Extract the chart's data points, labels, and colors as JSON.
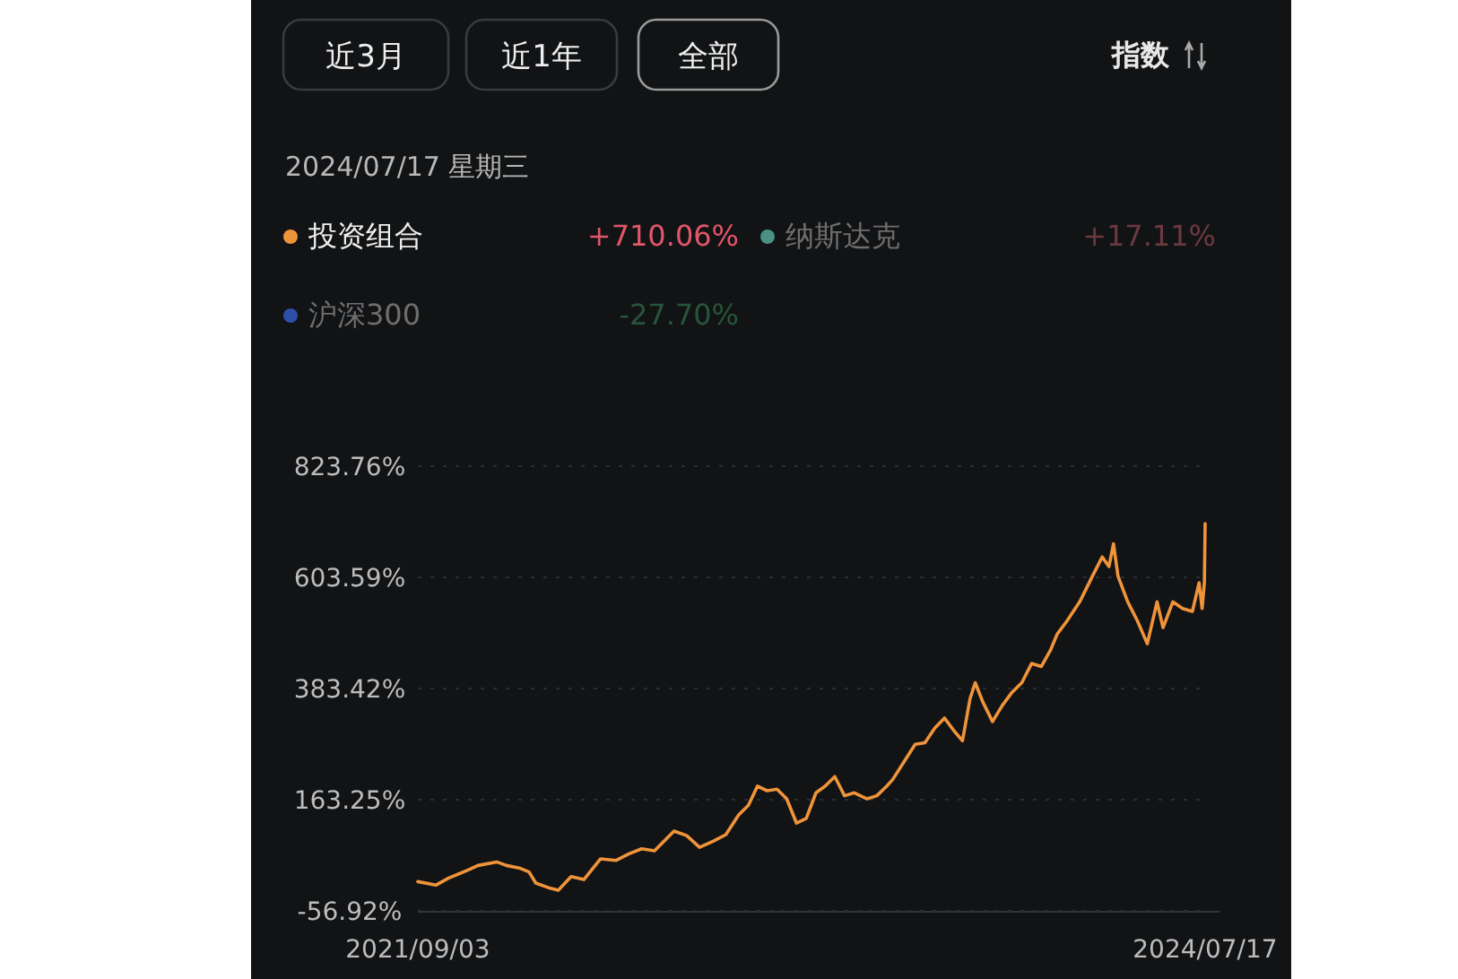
{
  "chart_data": {
    "type": "line",
    "subtitle": "2024/07/17 星期三",
    "annotations": [
      "近3月",
      "近1年",
      "全部",
      "指数",
      "+710.06%",
      "+17.11%",
      "-27.70%"
    ],
    "x": [
      "2021-09-03",
      "2021-09-27",
      "2021-10-14",
      "2021-11-09",
      "2021-11-22",
      "2021-12-17",
      "2021-12-30",
      "2022-01-16",
      "2022-01-29",
      "2022-02-07",
      "2022-02-24",
      "2022-03-09",
      "2022-03-26",
      "2022-04-12",
      "2022-05-04",
      "2022-05-25",
      "2022-06-11",
      "2022-06-28",
      "2022-07-15",
      "2022-08-10",
      "2022-08-27",
      "2022-09-13",
      "2022-10-01",
      "2022-10-18",
      "2022-11-04",
      "2022-11-17",
      "2022-11-29",
      "2022-12-12",
      "2022-12-25",
      "2023-01-07",
      "2023-01-20",
      "2023-02-02",
      "2023-02-15",
      "2023-02-27",
      "2023-03-12",
      "2023-03-25",
      "2023-04-07",
      "2023-04-24",
      "2023-05-07",
      "2023-05-20",
      "2023-05-28",
      "2023-06-15",
      "2023-06-27",
      "2023-07-10",
      "2023-07-23",
      "2023-08-05",
      "2023-08-18",
      "2023-08-29",
      "2023-09-08",
      "2023-09-15",
      "2023-09-25",
      "2023-10-08",
      "2023-10-21",
      "2023-11-03",
      "2023-11-16",
      "2023-11-29",
      "2023-12-12",
      "2023-12-24",
      "2024-01-02",
      "2024-01-15",
      "2024-02-01",
      "2024-02-18",
      "2024-03-02",
      "2024-03-11",
      "2024-03-17",
      "2024-03-23",
      "2024-04-05",
      "2024-04-18",
      "2024-05-01",
      "2024-05-14",
      "2024-05-22",
      "2024-06-04",
      "2024-06-17",
      "2024-06-30",
      "2024-07-09",
      "2024-07-13",
      "2024-07-16",
      "2024-07-17"
    ],
    "series": [
      {
        "name": "投资组合",
        "color": "#f0943a",
        "values": [
          1,
          -6,
          8,
          24,
          33,
          40,
          33,
          28,
          20,
          -2,
          -11,
          -16,
          11,
          5,
          46,
          43,
          56,
          66,
          62,
          101,
          92,
          69,
          81,
          94,
          133,
          152,
          190,
          181,
          184,
          165,
          117,
          126,
          177,
          190,
          209,
          171,
          177,
          165,
          171,
          190,
          203,
          245,
          273,
          276,
          305,
          325,
          299,
          280,
          363,
          395,
          357,
          318,
          350,
          376,
          395,
          433,
          427,
          459,
          491,
          517,
          555,
          606,
          644,
          625,
          670,
          606,
          555,
          517,
          472,
          555,
          504,
          555,
          542,
          536,
          593,
          542,
          593,
          710.06
        ]
      },
      {
        "name": "纳斯达克",
        "color": "#4d8f86",
        "values": [
          null,
          null,
          null,
          null,
          null,
          null,
          null,
          null,
          null,
          null,
          null,
          null,
          null,
          null,
          null,
          null,
          null,
          null,
          null,
          null,
          null,
          null,
          null,
          null,
          null,
          null,
          null,
          null,
          null,
          null,
          null,
          null,
          null,
          null,
          null,
          null,
          null,
          null,
          null,
          null,
          null,
          null,
          null,
          null,
          null,
          null,
          null,
          null,
          null,
          null,
          null,
          null,
          null,
          null,
          null,
          null,
          null,
          null,
          null,
          null,
          null,
          null,
          null,
          null,
          null,
          null,
          null,
          null,
          null,
          null,
          null,
          null,
          null,
          null,
          null,
          null,
          null,
          null
        ]
      },
      {
        "name": "沪深300",
        "color": "#2d4fa8",
        "values": [
          null,
          null,
          null,
          null,
          null,
          null,
          null,
          null,
          null,
          null,
          null,
          null,
          null,
          null,
          null,
          null,
          null,
          null,
          null,
          null,
          null,
          null,
          null,
          null,
          null,
          null,
          null,
          null,
          null,
          null,
          null,
          null,
          null,
          null,
          null,
          null,
          null,
          null,
          null,
          null,
          null,
          null,
          null,
          null,
          null,
          null,
          null,
          null,
          null,
          null,
          null,
          null,
          null,
          null,
          null,
          null,
          null,
          null,
          null,
          null,
          null,
          null,
          null,
          null,
          null,
          null,
          null,
          null,
          null,
          null,
          null,
          null,
          null,
          null,
          null,
          null,
          null,
          null
        ]
      }
    ],
    "xlim": [
      "2021-09-03",
      "2024-07-17"
    ],
    "xticks": [
      {
        "value": "2021-09-03",
        "label": "2021/09/03"
      },
      {
        "value": "2024-07-17",
        "label": "2024/07/17"
      }
    ],
    "ylim": [
      -56.92,
      823.76
    ],
    "yticks": [
      {
        "value": -56.92,
        "label": "-56.92%"
      },
      {
        "value": 163.25,
        "label": "163.25%"
      },
      {
        "value": 383.42,
        "label": "383.42%"
      },
      {
        "value": 603.59,
        "label": "603.59%"
      },
      {
        "value": 823.76,
        "label": "823.76%"
      }
    ],
    "grid": "y",
    "legend": "top",
    "marker": "none",
    "line_style": "solid"
  }
}
